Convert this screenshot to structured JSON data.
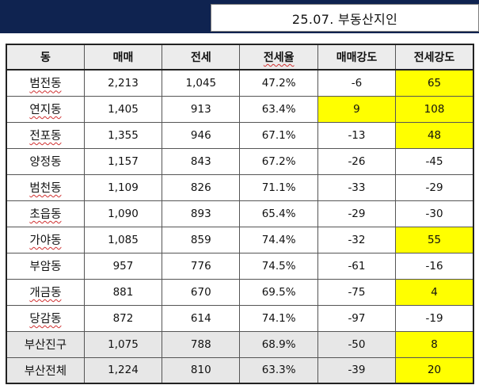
{
  "title": "25.07. 부동산지인",
  "colors": {
    "header_band": "#0f2350",
    "highlight": "#ffff00",
    "summary_bg": "#e7e7e7"
  },
  "columns": [
    "동",
    "매매",
    "전세",
    "전세율",
    "매매강도",
    "전세강도"
  ],
  "rows": [
    {
      "name": "범전동",
      "sale": "2,213",
      "jeonse": "1,045",
      "ratio": "47.2%",
      "sale_strength": "-6",
      "jeonse_strength": "65"
    },
    {
      "name": "연지동",
      "sale": "1,405",
      "jeonse": "913",
      "ratio": "63.4%",
      "sale_strength": "9",
      "jeonse_strength": "108"
    },
    {
      "name": "전포동",
      "sale": "1,355",
      "jeonse": "946",
      "ratio": "67.1%",
      "sale_strength": "-13",
      "jeonse_strength": "48"
    },
    {
      "name": "양정동",
      "sale": "1,157",
      "jeonse": "843",
      "ratio": "67.2%",
      "sale_strength": "-26",
      "jeonse_strength": "-45"
    },
    {
      "name": "범천동",
      "sale": "1,109",
      "jeonse": "826",
      "ratio": "71.1%",
      "sale_strength": "-33",
      "jeonse_strength": "-29"
    },
    {
      "name": "초읍동",
      "sale": "1,090",
      "jeonse": "893",
      "ratio": "65.4%",
      "sale_strength": "-29",
      "jeonse_strength": "-30"
    },
    {
      "name": "가야동",
      "sale": "1,085",
      "jeonse": "859",
      "ratio": "74.4%",
      "sale_strength": "-32",
      "jeonse_strength": "55"
    },
    {
      "name": "부암동",
      "sale": "957",
      "jeonse": "776",
      "ratio": "74.5%",
      "sale_strength": "-61",
      "jeonse_strength": "-16"
    },
    {
      "name": "개금동",
      "sale": "881",
      "jeonse": "670",
      "ratio": "69.5%",
      "sale_strength": "-75",
      "jeonse_strength": "4"
    },
    {
      "name": "당감동",
      "sale": "872",
      "jeonse": "614",
      "ratio": "74.1%",
      "sale_strength": "-97",
      "jeonse_strength": "-19"
    },
    {
      "name": "부산진구",
      "sale": "1,075",
      "jeonse": "788",
      "ratio": "68.9%",
      "sale_strength": "-50",
      "jeonse_strength": "8"
    },
    {
      "name": "부산전체",
      "sale": "1,224",
      "jeonse": "810",
      "ratio": "63.3%",
      "sale_strength": "-39",
      "jeonse_strength": "20"
    }
  ]
}
